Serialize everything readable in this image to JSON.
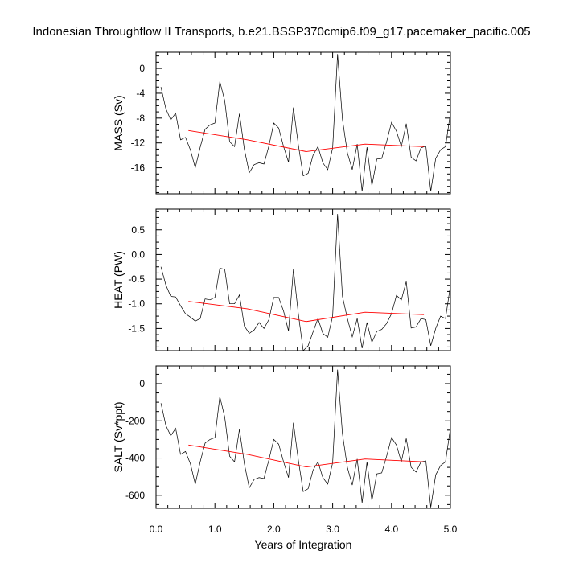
{
  "title": "Indonesian Throughflow II Transports, b.e21.BSSP370cmip6.f09_g17.pacemaker_pacific.005",
  "colors": {
    "series": "#000000",
    "trend": "#ff0000"
  },
  "chart_data": [
    {
      "type": "line",
      "ylabel": "MASS (Sv)",
      "xlabel": "",
      "xlim": [
        0,
        5
      ],
      "ylim": [
        -20.2,
        2.6
      ],
      "yticks": [
        -16,
        -12,
        -8,
        -4,
        0
      ],
      "ytick_labels": [
        "-16",
        "-12",
        "-8",
        "-4",
        "0"
      ],
      "series": [
        {
          "name": "annual",
          "x": [
            0.083,
            0.167,
            0.25,
            0.333,
            0.417,
            0.5,
            0.583,
            0.667,
            0.75,
            0.833,
            0.917,
            1.0,
            1.083,
            1.167,
            1.25,
            1.333,
            1.417,
            1.5,
            1.583,
            1.667,
            1.75,
            1.833,
            1.917,
            2.0,
            2.083,
            2.167,
            2.25,
            2.333,
            2.417,
            2.5,
            2.583,
            2.667,
            2.75,
            2.833,
            2.917,
            3.0,
            3.083,
            3.167,
            3.25,
            3.333,
            3.417,
            3.5,
            3.583,
            3.667,
            3.75,
            3.833,
            3.917,
            4.0,
            4.083,
            4.167,
            4.25,
            4.333,
            4.417,
            4.5,
            4.583,
            4.667,
            4.75,
            4.833,
            4.917,
            5.0
          ],
          "values": [
            -3.0,
            -6.5,
            -8.3,
            -7.2,
            -11.5,
            -11.1,
            -13.1,
            -16.0,
            -12.7,
            -9.8,
            -9.1,
            -8.8,
            -2.1,
            -5.2,
            -11.8,
            -12.6,
            -7.3,
            -13.0,
            -16.8,
            -15.5,
            -15.2,
            -15.4,
            -12.5,
            -8.8,
            -9.6,
            -12.6,
            -15.1,
            -6.3,
            -12.3,
            -17.3,
            -16.9,
            -14.0,
            -12.6,
            -15.2,
            -16.3,
            -12.8,
            2.3,
            -8.2,
            -13.6,
            -16.3,
            -12.2,
            -19.8,
            -12.7,
            -18.9,
            -14.6,
            -14.5,
            -11.8,
            -8.7,
            -10.1,
            -12.6,
            -8.9,
            -14.3,
            -14.9,
            -12.8,
            -12.5,
            -19.8,
            -14.5,
            -13.1,
            -12.6,
            -7.2
          ]
        },
        {
          "name": "trend",
          "x": [
            0.55,
            1.55,
            2.55,
            3.55,
            4.55
          ],
          "values": [
            -10.0,
            -11.5,
            -13.4,
            -12.2,
            -12.6
          ]
        }
      ]
    },
    {
      "type": "line",
      "ylabel": "HEAT (PW)",
      "xlabel": "",
      "xlim": [
        0,
        5
      ],
      "ylim": [
        -1.95,
        0.92
      ],
      "yticks": [
        -1.5,
        -1.0,
        -0.5,
        0.0,
        0.5
      ],
      "ytick_labels": [
        "-1.5",
        "-1.0",
        "-0.5",
        "0.0",
        "0.5"
      ],
      "series": [
        {
          "name": "annual",
          "x": [
            0.083,
            0.167,
            0.25,
            0.333,
            0.417,
            0.5,
            0.583,
            0.667,
            0.75,
            0.833,
            0.917,
            1.0,
            1.083,
            1.167,
            1.25,
            1.333,
            1.417,
            1.5,
            1.583,
            1.667,
            1.75,
            1.833,
            1.917,
            2.0,
            2.083,
            2.167,
            2.25,
            2.333,
            2.417,
            2.5,
            2.583,
            2.667,
            2.75,
            2.833,
            2.917,
            3.0,
            3.083,
            3.167,
            3.25,
            3.333,
            3.417,
            3.5,
            3.583,
            3.667,
            3.75,
            3.833,
            3.917,
            4.0,
            4.083,
            4.167,
            4.25,
            4.333,
            4.417,
            4.5,
            4.583,
            4.667,
            4.75,
            4.833,
            4.917,
            5.0
          ],
          "values": [
            -0.25,
            -0.62,
            -0.85,
            -0.86,
            -1.04,
            -1.2,
            -1.27,
            -1.35,
            -1.3,
            -0.9,
            -0.92,
            -0.87,
            -0.28,
            -0.3,
            -1.0,
            -1.0,
            -0.82,
            -1.45,
            -1.6,
            -1.53,
            -1.38,
            -1.5,
            -1.32,
            -0.87,
            -0.87,
            -1.15,
            -1.55,
            -0.3,
            -1.2,
            -1.95,
            -1.85,
            -1.57,
            -1.3,
            -1.6,
            -1.68,
            -1.25,
            0.82,
            -0.85,
            -1.3,
            -1.67,
            -1.3,
            -1.9,
            -1.38,
            -1.78,
            -1.56,
            -1.52,
            -1.4,
            -1.2,
            -0.83,
            -0.92,
            -0.55,
            -1.49,
            -1.47,
            -1.3,
            -1.32,
            -1.85,
            -1.5,
            -1.25,
            -1.3,
            -0.63
          ]
        },
        {
          "name": "trend",
          "x": [
            0.55,
            1.55,
            2.55,
            3.55,
            4.55
          ],
          "values": [
            -0.95,
            -1.1,
            -1.36,
            -1.17,
            -1.22
          ]
        }
      ]
    },
    {
      "type": "line",
      "ylabel": "SALT (Sv*ppt)",
      "xlabel": "Years of Integration",
      "xlim": [
        0,
        5
      ],
      "ylim": [
        -670,
        95
      ],
      "yticks": [
        -600,
        -400,
        -200,
        0
      ],
      "ytick_labels": [
        "-600",
        "-400",
        "-200",
        "0"
      ],
      "xticks": [
        0,
        1,
        2,
        3,
        4,
        5
      ],
      "xtick_labels": [
        "0.0",
        "1.0",
        "2.0",
        "3.0",
        "4.0",
        "5.0"
      ],
      "series": [
        {
          "name": "annual",
          "x": [
            0.083,
            0.167,
            0.25,
            0.333,
            0.417,
            0.5,
            0.583,
            0.667,
            0.75,
            0.833,
            0.917,
            1.0,
            1.083,
            1.167,
            1.25,
            1.333,
            1.417,
            1.5,
            1.583,
            1.667,
            1.75,
            1.833,
            1.917,
            2.0,
            2.083,
            2.167,
            2.25,
            2.333,
            2.417,
            2.5,
            2.583,
            2.667,
            2.75,
            2.833,
            2.917,
            3.0,
            3.083,
            3.167,
            3.25,
            3.333,
            3.417,
            3.5,
            3.583,
            3.667,
            3.75,
            3.833,
            3.917,
            4.0,
            4.083,
            4.167,
            4.25,
            4.333,
            4.417,
            4.5,
            4.583,
            4.667,
            4.75,
            4.833,
            4.917,
            5.0
          ],
          "values": [
            -105,
            -225,
            -280,
            -240,
            -380,
            -365,
            -430,
            -540,
            -420,
            -320,
            -300,
            -290,
            -70,
            -180,
            -390,
            -420,
            -245,
            -430,
            -560,
            -515,
            -505,
            -510,
            -410,
            -300,
            -325,
            -420,
            -505,
            -210,
            -410,
            -580,
            -565,
            -465,
            -420,
            -505,
            -540,
            -425,
            75,
            -270,
            -450,
            -545,
            -405,
            -640,
            -420,
            -630,
            -485,
            -480,
            -390,
            -290,
            -330,
            -420,
            -295,
            -450,
            -475,
            -420,
            -415,
            -665,
            -490,
            -440,
            -420,
            -240
          ]
        },
        {
          "name": "trend",
          "x": [
            0.55,
            1.55,
            2.55,
            3.55,
            4.55
          ],
          "values": [
            -330,
            -380,
            -448,
            -405,
            -420
          ]
        }
      ]
    }
  ]
}
